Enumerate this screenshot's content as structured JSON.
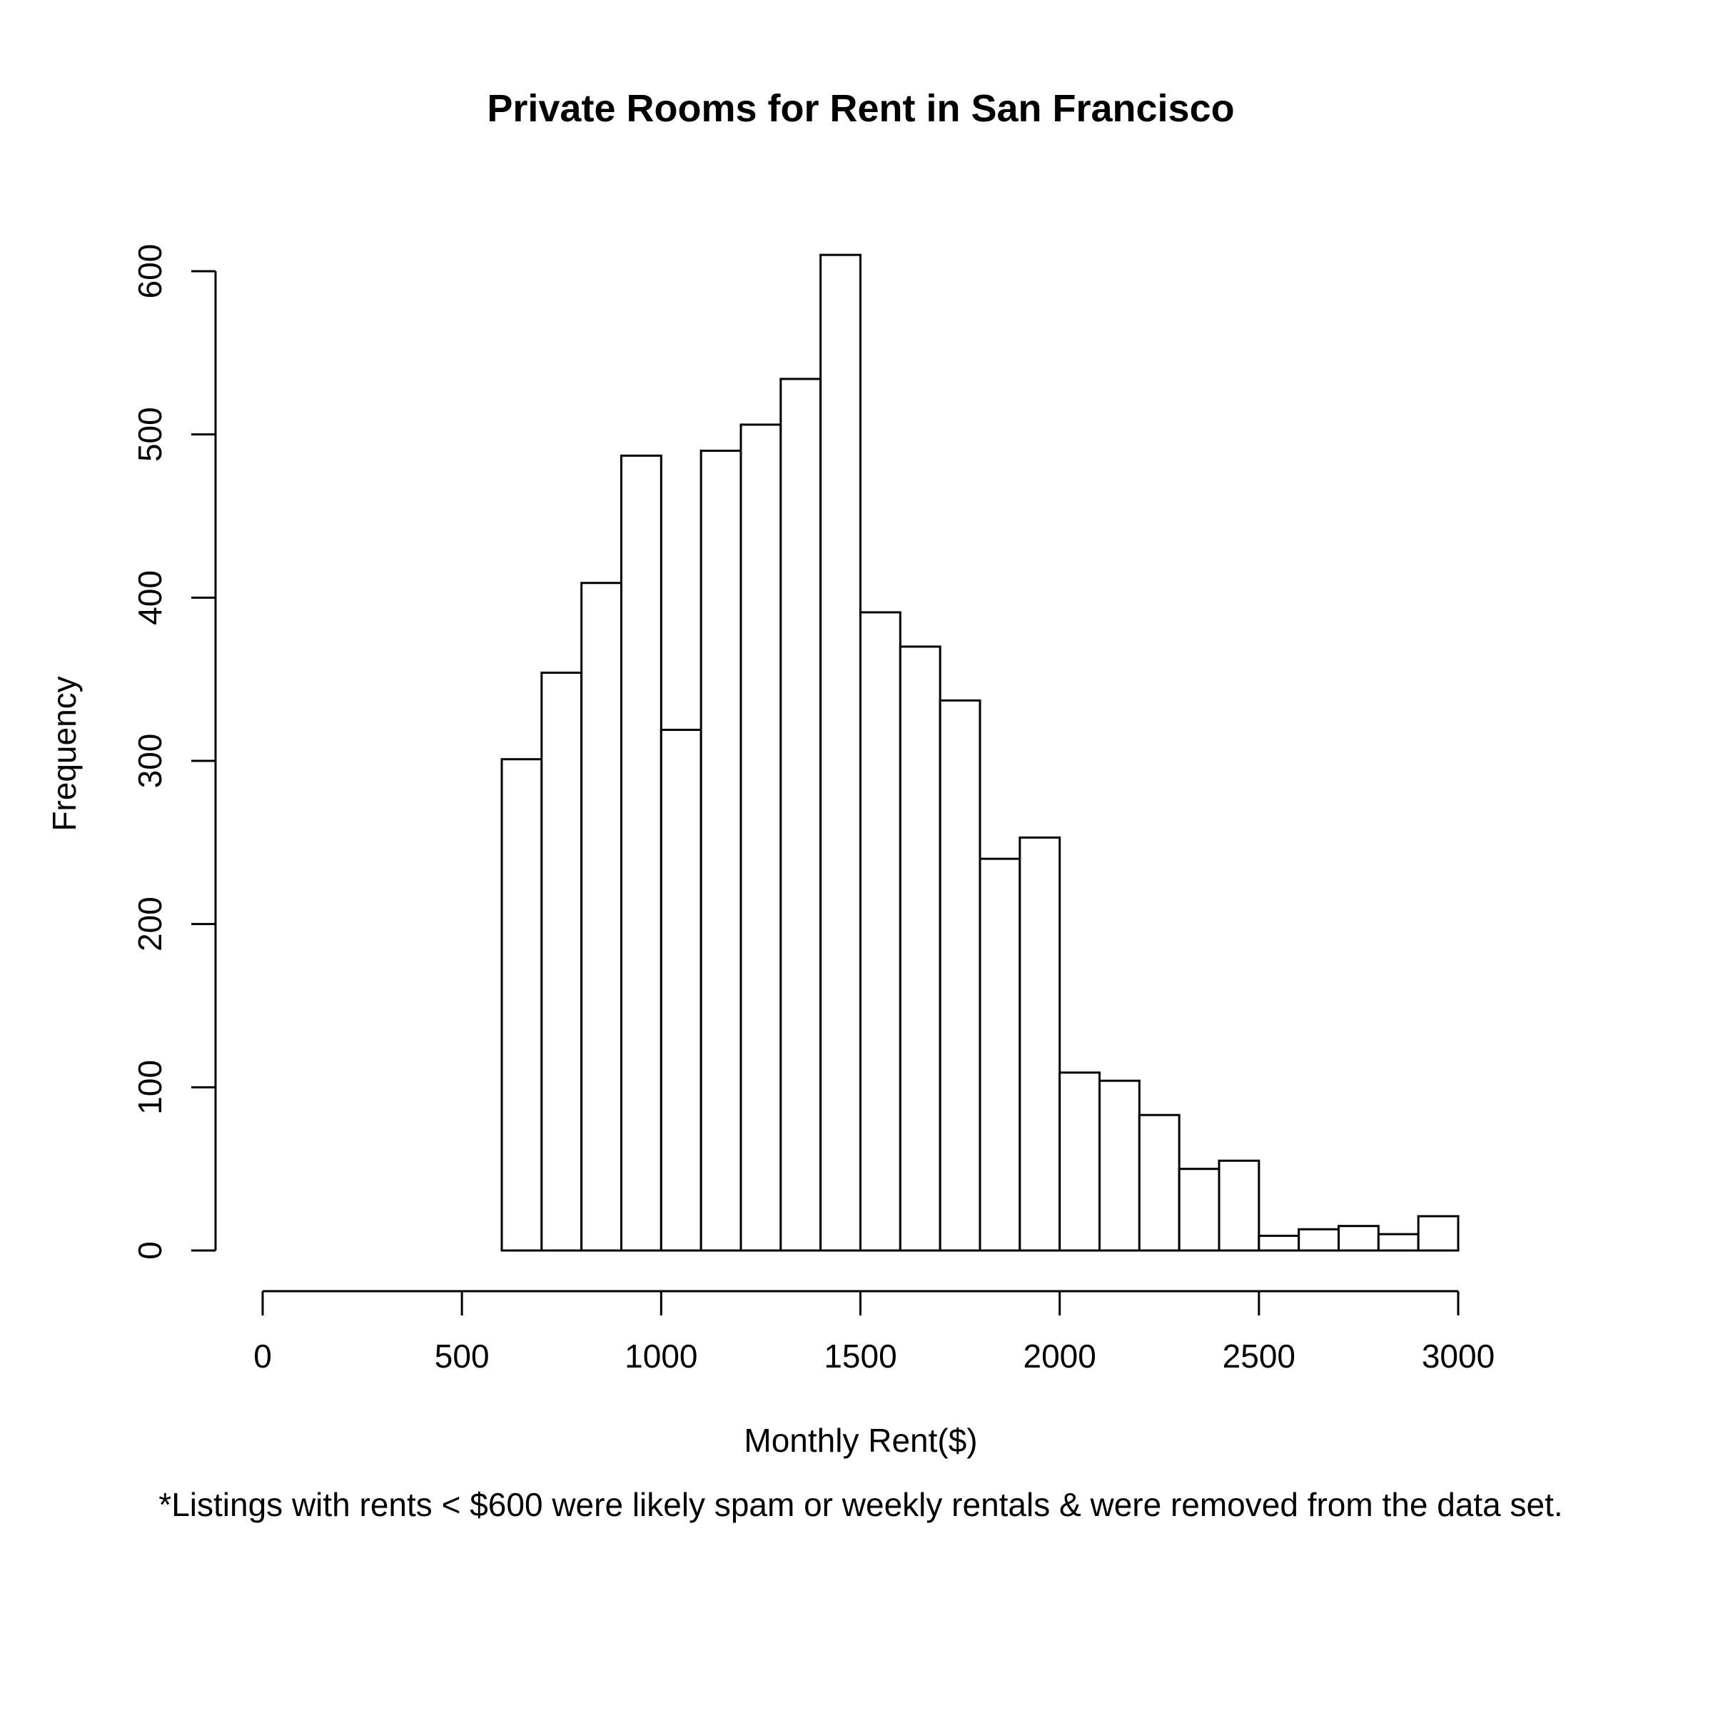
{
  "chart_data": {
    "type": "bar",
    "title": "Private Rooms for Rent in San Francisco",
    "xlabel": "Monthly Rent($)",
    "ylabel": "Frequency",
    "footnote": "*Listings with rents < $600 were likely spam or weekly rentals & were removed from the data set.",
    "xlim": [
      0,
      3000
    ],
    "ylim": [
      0,
      600
    ],
    "x_ticks": [
      0,
      500,
      1000,
      1500,
      2000,
      2500,
      3000
    ],
    "y_ticks": [
      0,
      100,
      200,
      300,
      400,
      500,
      600
    ],
    "grid": false,
    "legend": null,
    "bin_width": 100,
    "bins": [
      {
        "start": 600,
        "end": 700,
        "count": 301
      },
      {
        "start": 700,
        "end": 800,
        "count": 354
      },
      {
        "start": 800,
        "end": 900,
        "count": 409
      },
      {
        "start": 900,
        "end": 1000,
        "count": 487
      },
      {
        "start": 1000,
        "end": 1100,
        "count": 319
      },
      {
        "start": 1100,
        "end": 1200,
        "count": 490
      },
      {
        "start": 1200,
        "end": 1300,
        "count": 506
      },
      {
        "start": 1300,
        "end": 1400,
        "count": 534
      },
      {
        "start": 1400,
        "end": 1500,
        "count": 610
      },
      {
        "start": 1500,
        "end": 1600,
        "count": 391
      },
      {
        "start": 1600,
        "end": 1700,
        "count": 370
      },
      {
        "start": 1700,
        "end": 1800,
        "count": 337
      },
      {
        "start": 1800,
        "end": 1900,
        "count": 240
      },
      {
        "start": 1900,
        "end": 2000,
        "count": 253
      },
      {
        "start": 2000,
        "end": 2100,
        "count": 109
      },
      {
        "start": 2100,
        "end": 2200,
        "count": 104
      },
      {
        "start": 2200,
        "end": 2300,
        "count": 83
      },
      {
        "start": 2300,
        "end": 2400,
        "count": 50
      },
      {
        "start": 2400,
        "end": 2500,
        "count": 55
      },
      {
        "start": 2500,
        "end": 2600,
        "count": 9
      },
      {
        "start": 2600,
        "end": 2700,
        "count": 13
      },
      {
        "start": 2700,
        "end": 2800,
        "count": 15
      },
      {
        "start": 2800,
        "end": 2900,
        "count": 10
      },
      {
        "start": 2900,
        "end": 3000,
        "count": 21
      }
    ],
    "categories": [
      "600-700",
      "700-800",
      "800-900",
      "900-1000",
      "1000-1100",
      "1100-1200",
      "1200-1300",
      "1300-1400",
      "1400-1500",
      "1500-1600",
      "1600-1700",
      "1700-1800",
      "1800-1900",
      "1900-2000",
      "2000-2100",
      "2100-2200",
      "2200-2300",
      "2300-2400",
      "2400-2500",
      "2500-2600",
      "2600-2700",
      "2700-2800",
      "2800-2900",
      "2900-3000"
    ],
    "values": [
      301,
      354,
      409,
      487,
      319,
      490,
      506,
      534,
      610,
      391,
      370,
      337,
      240,
      253,
      109,
      104,
      83,
      50,
      55,
      9,
      13,
      15,
      10,
      21
    ]
  }
}
